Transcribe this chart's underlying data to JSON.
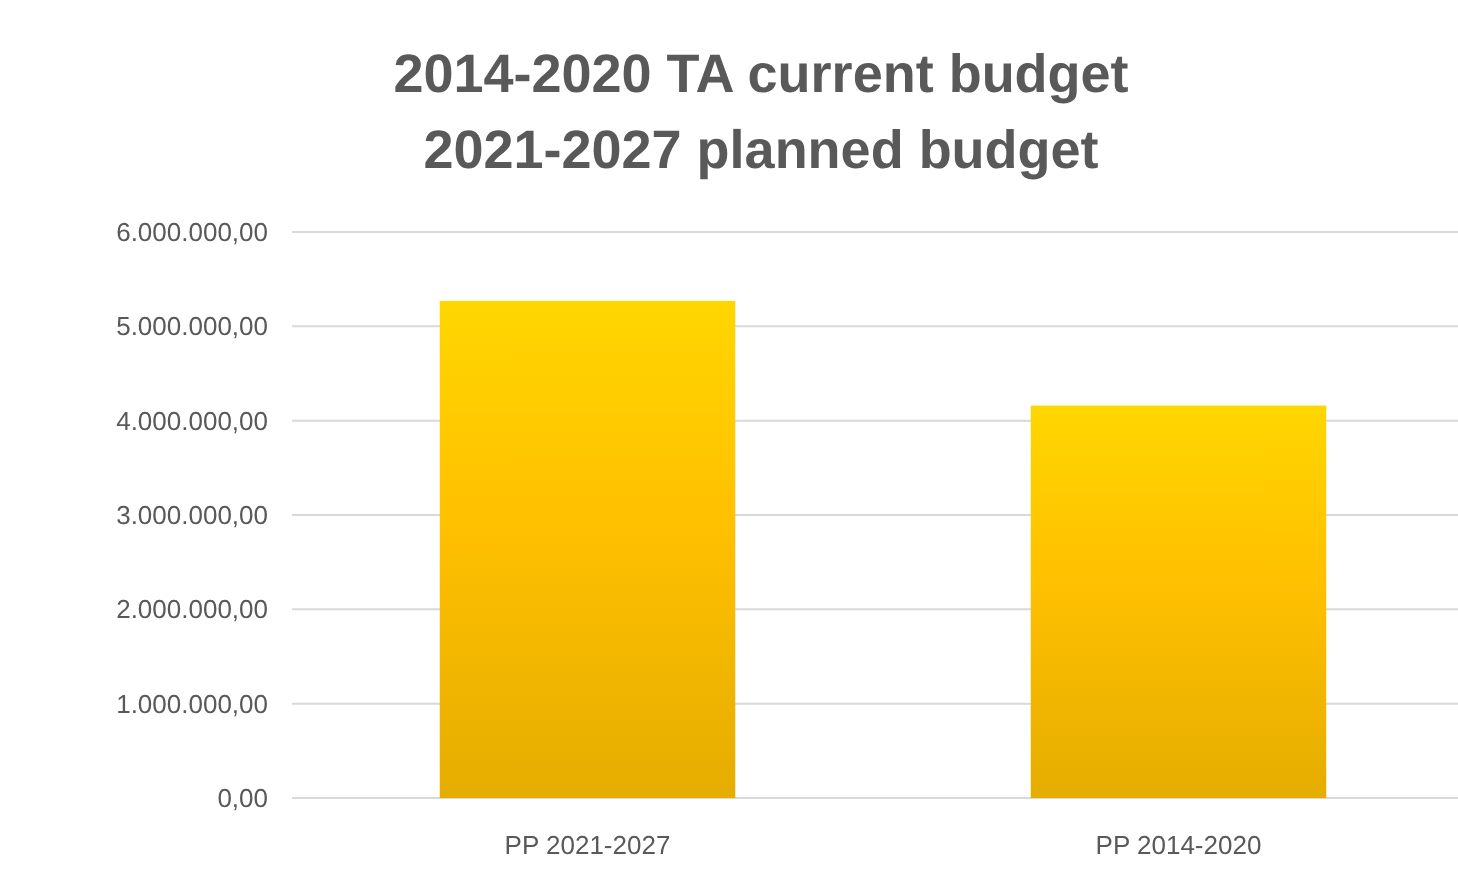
{
  "chart_data": {
    "type": "bar",
    "title": "2014-2020 TA current budget",
    "subtitle": "2021-2027 planned budget",
    "categories": [
      "PP 2021-2027",
      "PP 2014-2020"
    ],
    "values": [
      5270000,
      4160000
    ],
    "color": "#ffc000",
    "ylim": [
      0,
      6000000
    ],
    "yticks": [
      {
        "value": 0,
        "label": "0,00"
      },
      {
        "value": 1000000,
        "label": "1.000.000,00"
      },
      {
        "value": 2000000,
        "label": "2.000.000,00"
      },
      {
        "value": 3000000,
        "label": "3.000.000,00"
      },
      {
        "value": 4000000,
        "label": "4.000.000,00"
      },
      {
        "value": 5000000,
        "label": "5.000.000,00"
      },
      {
        "value": 6000000,
        "label": "6.000.000,00"
      }
    ],
    "grid": true
  }
}
